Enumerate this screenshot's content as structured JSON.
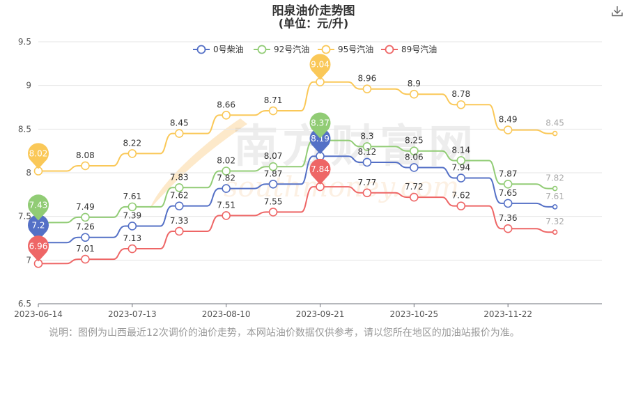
{
  "chart_data": {
    "type": "line",
    "title": "阳泉油价走势图",
    "subtitle": "(单位：元/升)",
    "x": [
      "2023-06-14",
      "2023-06-28",
      "2023-07-13",
      "2023-07-27",
      "2023-08-10",
      "2023-08-24",
      "2023-09-21",
      "2023-10-12",
      "2023-10-25",
      "2023-11-08",
      "2023-11-22",
      "2023-12-05"
    ],
    "x_tick_labels": [
      "2023-06-14",
      "2023-07-13",
      "2023-08-10",
      "2023-09-21",
      "2023-10-25",
      "2023-11-22"
    ],
    "y_tick_labels": [
      "6.5",
      "7",
      "7.5",
      "8",
      "8.5",
      "9",
      "9.5"
    ],
    "ylim": [
      6.5,
      9.5
    ],
    "grid": true,
    "legend_position": "top-center",
    "series": [
      {
        "name": "0号柴油",
        "color": "#5470c6",
        "values": [
          7.2,
          7.26,
          7.39,
          7.62,
          7.82,
          7.87,
          8.19,
          8.12,
          8.06,
          7.94,
          7.65,
          7.61
        ],
        "min_pin": "7.2",
        "max_pin": "8.19"
      },
      {
        "name": "92号汽油",
        "color": "#91cc75",
        "values": [
          7.43,
          7.49,
          7.61,
          7.83,
          8.02,
          8.07,
          8.37,
          8.3,
          8.25,
          8.14,
          7.87,
          7.82
        ],
        "min_pin": "7.43",
        "max_pin": "8.37"
      },
      {
        "name": "95号汽油",
        "color": "#fac858",
        "values": [
          8.02,
          8.08,
          8.22,
          8.45,
          8.66,
          8.71,
          9.04,
          8.96,
          8.9,
          8.78,
          8.49,
          8.45
        ],
        "min_pin": "8.02",
        "max_pin": "9.04"
      },
      {
        "name": "89号汽油",
        "color": "#ee6666",
        "values": [
          6.96,
          7.01,
          7.13,
          7.33,
          7.51,
          7.55,
          7.84,
          7.77,
          7.72,
          7.62,
          7.36,
          7.32
        ],
        "min_pin": "6.96",
        "max_pin": "7.84"
      }
    ]
  },
  "note": "说明：图例为山西最近12次调价的油价走势，本网站油价数据仅供参考，请以您所在地区的加油站报价为准。",
  "watermark": "南方财富网",
  "watermark_sub": "southmoney.com",
  "icons": {
    "download": "download-icon"
  }
}
